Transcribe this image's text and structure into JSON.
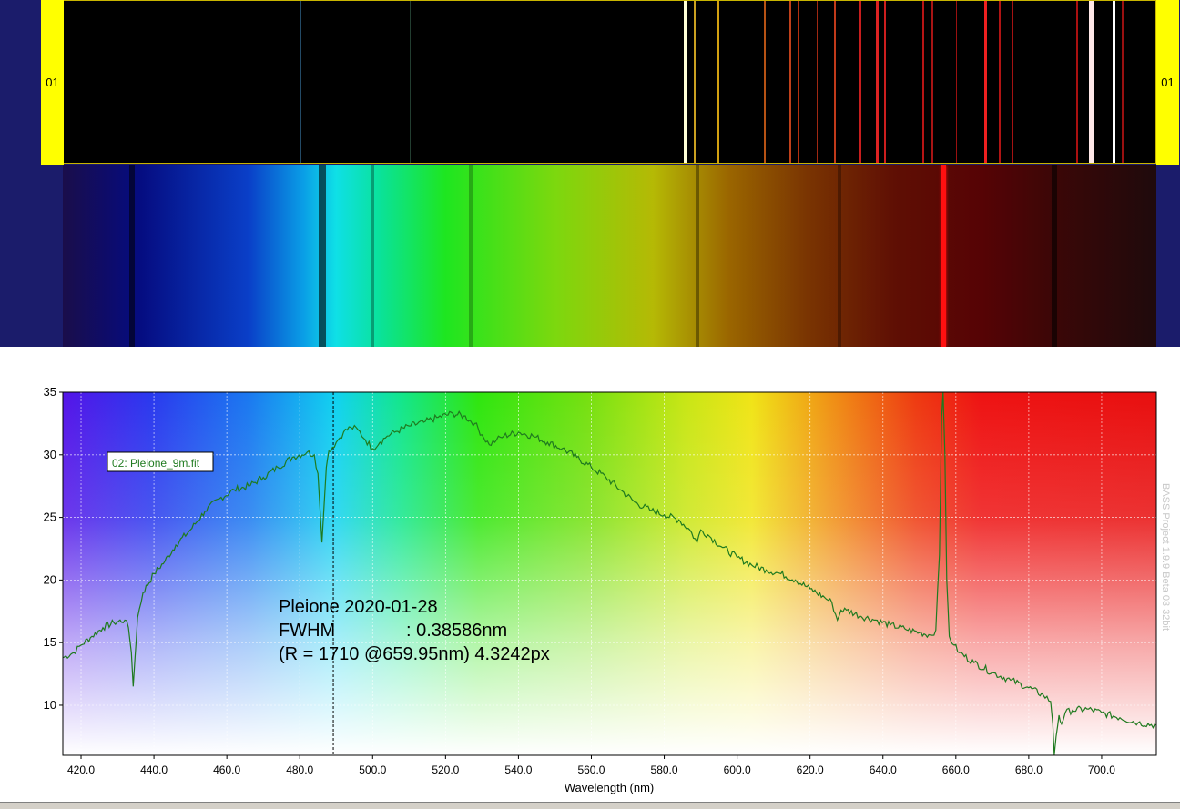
{
  "calibration_strip": {
    "label_left": "01",
    "label_right": "01",
    "lines": [
      {
        "nm": 480.0,
        "color": "#234a66",
        "w": 1.5
      },
      {
        "nm": 510.0,
        "color": "#223d30",
        "w": 1.5
      },
      {
        "nm": 585.6,
        "color": "#ffffd8",
        "w": 4
      },
      {
        "nm": 588.2,
        "color": "#caa020",
        "w": 2
      },
      {
        "nm": 594.5,
        "color": "#d2a010",
        "w": 2
      },
      {
        "nm": 607.4,
        "color": "#b65214",
        "w": 2
      },
      {
        "nm": 614.3,
        "color": "#c0401a",
        "w": 2
      },
      {
        "nm": 616.4,
        "color": "#b03010",
        "w": 1.5
      },
      {
        "nm": 621.7,
        "color": "#a02812",
        "w": 1.5
      },
      {
        "nm": 626.6,
        "color": "#c03a1a",
        "w": 2
      },
      {
        "nm": 630.5,
        "color": "#a52615",
        "w": 1.5
      },
      {
        "nm": 633.4,
        "color": "#c81e1e",
        "w": 3
      },
      {
        "nm": 638.3,
        "color": "#dd2222",
        "w": 3
      },
      {
        "nm": 640.2,
        "color": "#cc1e1e",
        "w": 2
      },
      {
        "nm": 650.7,
        "color": "#b61414",
        "w": 2
      },
      {
        "nm": 653.3,
        "color": "#a81414",
        "w": 1.5
      },
      {
        "nm": 659.9,
        "color": "#9a1010",
        "w": 1.5
      },
      {
        "nm": 667.8,
        "color": "#ee2020",
        "w": 3
      },
      {
        "nm": 671.7,
        "color": "#b01414",
        "w": 2
      },
      {
        "nm": 675.3,
        "color": "#a51212",
        "w": 1.5
      },
      {
        "nm": 692.9,
        "color": "#aa1010",
        "w": 2
      },
      {
        "nm": 697.0,
        "color": "#ffe8e8",
        "w": 5
      },
      {
        "nm": 703.2,
        "color": "#ffffff",
        "w": 3
      },
      {
        "nm": 705.5,
        "color": "#9a1010",
        "w": 2
      }
    ]
  },
  "spectrum_strip": {
    "dark_bands": [
      {
        "nm": 434.0,
        "width_nm": 1.5,
        "opacity": 0.55
      },
      {
        "nm": 486.1,
        "width_nm": 2.0,
        "opacity": 0.6
      },
      {
        "nm": 500.0,
        "width_nm": 1.0,
        "opacity": 0.3
      },
      {
        "nm": 527.0,
        "width_nm": 1.0,
        "opacity": 0.25
      },
      {
        "nm": 589.0,
        "width_nm": 1.0,
        "opacity": 0.35
      },
      {
        "nm": 628.0,
        "width_nm": 1.0,
        "opacity": 0.3
      },
      {
        "nm": 687.0,
        "width_nm": 1.5,
        "opacity": 0.55
      }
    ],
    "bright_bands": [
      {
        "nm": 656.6,
        "width_nm": 1.2,
        "color": "#ff1010"
      }
    ]
  },
  "chart_data": {
    "type": "line",
    "xlabel": "Wavelength (nm)",
    "xlim": [
      415,
      715
    ],
    "ylim": [
      6,
      35
    ],
    "xticks": [
      420,
      440,
      460,
      480,
      500,
      520,
      540,
      560,
      580,
      600,
      620,
      640,
      660,
      680,
      700
    ],
    "xtick_labels": [
      "420.0",
      "440.0",
      "460.0",
      "480.0",
      "500.0",
      "520.0",
      "540.0",
      "560.0",
      "580.0",
      "600.0",
      "620.0",
      "640.0",
      "660.0",
      "680.0",
      "700.0"
    ],
    "yticks": [
      10,
      15,
      20,
      25,
      30,
      35
    ],
    "ytick_labels": [
      "10",
      "15",
      "20",
      "25",
      "30",
      "35"
    ],
    "grid": true,
    "series": [
      {
        "name": "02: Pleione_9m.fit",
        "color": "#1f7a1f",
        "x": [
          415,
          418,
          420,
          423,
          426,
          429,
          432,
          433,
          433.8,
          434.3,
          434.8,
          435.5,
          437,
          440,
          443,
          446,
          450,
          454,
          458,
          462,
          466,
          470,
          474,
          478,
          482,
          484,
          485,
          485.6,
          486.1,
          486.7,
          487.3,
          488,
          490,
          492,
          494,
          496,
          498,
          500,
          502,
          504,
          506,
          510,
          514,
          518,
          522,
          525,
          528,
          530,
          532,
          534,
          536,
          540,
          544,
          548,
          552,
          556,
          560,
          564,
          568,
          572,
          576,
          580,
          584,
          587,
          589,
          590,
          592,
          596,
          600,
          604,
          608,
          612,
          616,
          620,
          624,
          626,
          627.5,
          628.5,
          630,
          634,
          638,
          642,
          646,
          650,
          653,
          654.5,
          655.5,
          656.1,
          656.5,
          657.0,
          657.5,
          658.2,
          659.5,
          661,
          665,
          670,
          675,
          680,
          684,
          686,
          686.6,
          687.0,
          687.5,
          688.3,
          689,
          690,
          692,
          696,
          700,
          705,
          710,
          715
        ],
        "values": [
          13.8,
          14.2,
          14.8,
          15.5,
          16.2,
          16.6,
          16.8,
          16.2,
          14.2,
          11.5,
          13.8,
          17.0,
          19.0,
          20.5,
          21.5,
          22.8,
          24.0,
          25.5,
          26.5,
          27.2,
          27.5,
          28.2,
          29.0,
          29.8,
          30.2,
          30.0,
          28.5,
          25.5,
          23.0,
          26.0,
          29.0,
          30.3,
          31.0,
          31.8,
          32.2,
          32.0,
          31.2,
          30.5,
          31.0,
          31.5,
          31.8,
          32.3,
          32.6,
          33.0,
          33.3,
          33.1,
          32.5,
          31.6,
          30.8,
          31.2,
          31.5,
          31.8,
          31.5,
          31.0,
          30.5,
          29.8,
          29.0,
          28.2,
          27.2,
          26.2,
          25.6,
          25.2,
          24.8,
          24.0,
          23.0,
          24.0,
          23.6,
          22.6,
          21.8,
          21.2,
          20.8,
          20.5,
          20.0,
          19.3,
          18.6,
          18.2,
          16.8,
          17.6,
          17.6,
          17.1,
          16.8,
          16.4,
          16.1,
          15.8,
          15.6,
          16.0,
          22.0,
          33.0,
          36.0,
          30.0,
          20.0,
          15.5,
          14.8,
          14.2,
          13.4,
          12.6,
          12.0,
          11.4,
          10.8,
          10.3,
          8.5,
          6.0,
          7.5,
          9.2,
          8.5,
          9.4,
          9.6,
          9.7,
          9.4,
          9.0,
          8.6,
          8.4
        ]
      }
    ],
    "cursor_x": 489.2,
    "annotation": {
      "line1": "Pleione 2020-01-28",
      "line2_label": "FWHM",
      "line2_value": ": 0.38586nm",
      "line3": "(R = 1710 @659.95nm) 4.3242px"
    },
    "legend": {
      "label": "02: Pleione_9m.fit",
      "placement": "top-left"
    },
    "watermark": "BASS Project 1.9.9 Beta 03 32bit"
  }
}
